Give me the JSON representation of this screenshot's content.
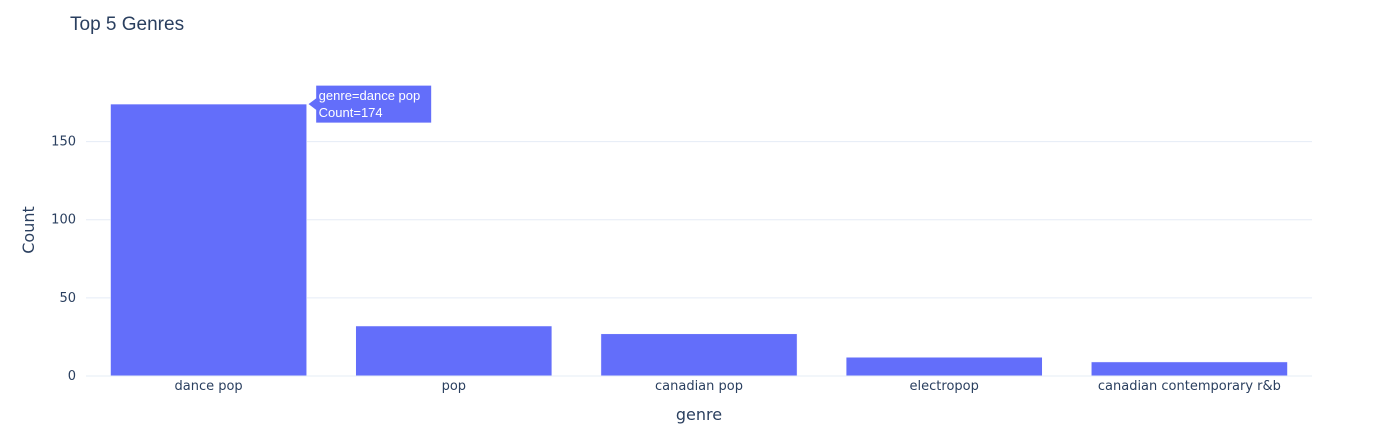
{
  "chart_data": {
    "type": "bar",
    "title": "Top 5 Genres",
    "xlabel": "genre",
    "ylabel": "Count",
    "categories": [
      "dance pop",
      "pop",
      "canadian pop",
      "electropop",
      "canadian contemporary r&b"
    ],
    "values": [
      174,
      32,
      27,
      12,
      9
    ],
    "ylim": [
      0,
      183
    ],
    "yticks": [
      0,
      50,
      100,
      150
    ],
    "grid": true,
    "legend": "none",
    "bar_color": "#636efa",
    "tooltip": {
      "category_index": 0,
      "line1": "genre=dance pop",
      "line2": "Count=174"
    }
  }
}
